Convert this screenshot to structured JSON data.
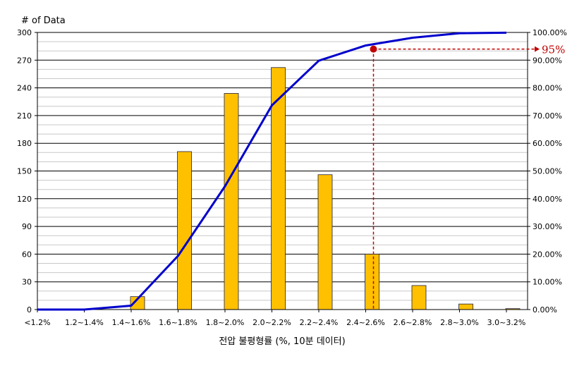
{
  "chart_data": {
    "type": "bar",
    "y_axis_label": "# of Data",
    "xlabel": "전압 불평형률 (%, 10분 데이터)",
    "categories": [
      "<1.2%",
      "1.2~1.4%",
      "1.4~1.6%",
      "1.6~1.8%",
      "1.8~2.0%",
      "2.0~2.2%",
      "2.2~2.4%",
      "2.4~2.6%",
      "2.6~2.8%",
      "2.8~3.0%",
      "3.0~3.2%"
    ],
    "series": [
      {
        "values": [
          0,
          0,
          14,
          171,
          234,
          262,
          146,
          60,
          26,
          6,
          1
        ],
        "color": "#ffc000",
        "type": "bar",
        "axis": "left"
      },
      {
        "values": [
          0,
          0,
          1.4,
          19.4,
          44.5,
          73.7,
          89.8,
          95.3,
          98.1,
          99.7,
          99.9
        ],
        "color": "#0000cc",
        "type": "line",
        "axis": "right"
      }
    ],
    "ylim": [
      0,
      300
    ],
    "y_ticks": [
      "0",
      "30",
      "60",
      "90",
      "120",
      "150",
      "180",
      "210",
      "240",
      "270",
      "300"
    ],
    "y2lim": [
      0,
      100
    ],
    "y2_ticks": [
      "0.00%",
      "10.00%",
      "20.00%",
      "30.00%",
      "40.00%",
      "50.00%",
      "60.00%",
      "70.00%",
      "80.00%",
      "90.00%",
      "100.00%"
    ],
    "annotation": {
      "label": "95%",
      "category": "2.4~2.6%",
      "value": 95,
      "color": "#c00000"
    },
    "grid": true,
    "legend": "none"
  }
}
